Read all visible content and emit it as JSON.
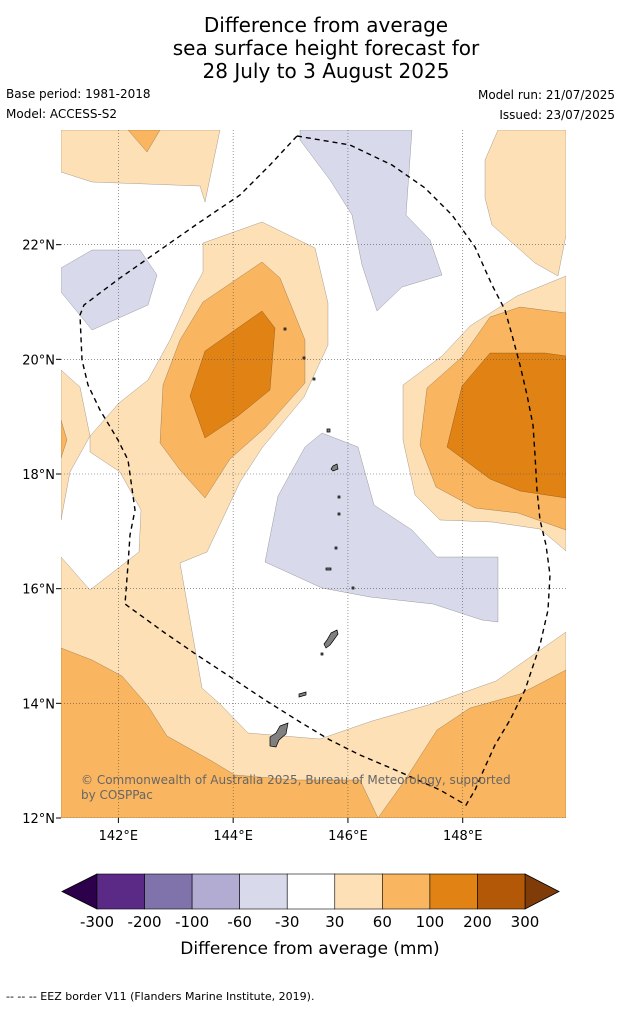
{
  "title_lines": [
    "Difference from average",
    "sea surface height forecast for",
    "28 July to 3 August 2025"
  ],
  "meta": {
    "base_period": "Base period: 1981-2018",
    "model": "Model: ACCESS-S2",
    "model_run": "Model run: 21/07/2025",
    "issued": "Issued: 23/07/2025"
  },
  "map": {
    "lon_range": [
      141,
      149.8
    ],
    "lat_range": [
      12,
      24
    ],
    "lon_ticks": [
      "142°E",
      "144°E",
      "146°E",
      "148°E"
    ],
    "lat_ticks": [
      "12°N",
      "14°N",
      "16°N",
      "18°N",
      "20°N",
      "22°N"
    ],
    "copyright_lines": [
      "© Commonwealth of Australia 2025, Bureau of Meteorology, supported",
      "by COSPPac"
    ],
    "colors": {
      "c30_60": "#fde0b6",
      "c60_100": "#f9b55f",
      "c100_200": "#e08214",
      "cm60_m30": "#d8daeb",
      "land": "#808080"
    }
  },
  "colorbar": {
    "ticks": [
      "-300",
      "-200",
      "-100",
      "-60",
      "-30",
      "30",
      "60",
      "100",
      "200",
      "300"
    ],
    "colors": [
      "#5a2a86",
      "#8073ac",
      "#b2abd2",
      "#d8daeb",
      "#ffffff",
      "#fde0b6",
      "#f9b55f",
      "#e08214",
      "#b35806"
    ],
    "extend_low_color": "#2d004b",
    "extend_high_color": "#7f3b08",
    "label": "Difference from average (mm)"
  },
  "footer": "--  --  -- EEZ border V11 (Flanders Marine Institute, 2019)."
}
